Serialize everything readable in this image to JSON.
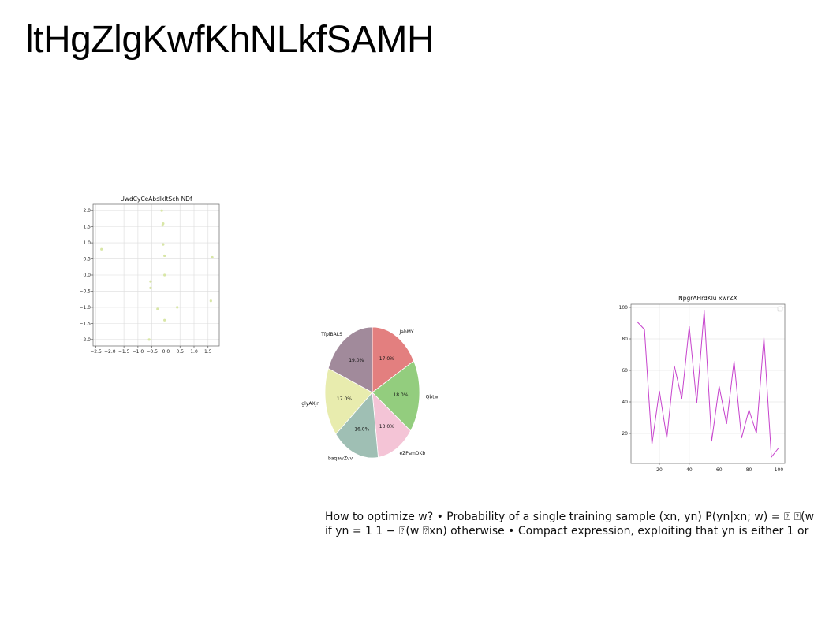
{
  "page": {
    "title": "ltHgZlgKwfKhNLkfSAMH"
  },
  "text_block": {
    "line1": "How to optimize w? • Probability of a single training sample (xn, yn) P(yn|xn; w) = ⍰ ⍰(w",
    "line2": "if yn = 1 1 − ⍰(w ⍰xn) otherwise • Compact expression, exploiting that yn is either 1 or"
  },
  "chart_data": [
    {
      "type": "scatter",
      "title": "UwdCyCeAbslkltSch NDf",
      "xlim": [
        -2.6,
        1.9
      ],
      "ylim": [
        -2.2,
        2.2
      ],
      "xticks": [
        "−2.5",
        "−2.0",
        "−1.5",
        "−1.0",
        "−0.5",
        "0.0",
        "0.5",
        "1.0",
        "1.5"
      ],
      "xtick_values": [
        -2.5,
        -2.0,
        -1.5,
        -1.0,
        -0.5,
        0.0,
        0.5,
        1.0,
        1.5
      ],
      "yticks": [
        "2.0",
        "1.5",
        "1.0",
        "0.5",
        "0.0",
        "−0.5",
        "−1.0",
        "−1.5",
        "−2.0"
      ],
      "ytick_values": [
        2.0,
        1.5,
        1.0,
        0.5,
        0.0,
        -0.5,
        -1.0,
        -1.5,
        -2.0
      ],
      "grid": true,
      "color": "#d8e6a6",
      "x": [
        -2.3,
        -0.15,
        -0.12,
        -0.1,
        -0.1,
        -0.05,
        -0.05,
        -0.55,
        -0.55,
        -0.3,
        0.4,
        -0.05,
        1.65,
        1.6,
        -0.6
      ],
      "y": [
        0.8,
        2.0,
        1.55,
        1.6,
        0.95,
        0.6,
        0.0,
        -0.2,
        -0.4,
        -1.05,
        -1.0,
        -1.4,
        0.55,
        -0.8,
        -2.0
      ]
    },
    {
      "type": "pie",
      "labels": [
        "JahMY",
        "Qbtw",
        "eZPsmDKb",
        "baqawZvv",
        "glyAXjn",
        "TfplBALS"
      ],
      "values": [
        17.0,
        18.0,
        13.0,
        16.0,
        17.0,
        19.0
      ],
      "pct_labels": [
        "17.0%",
        "18.0%",
        "13.0%",
        "16.0%",
        "17.0%",
        "19.0%"
      ],
      "colors": [
        "#e37f7f",
        "#93cd7e",
        "#f4c4d6",
        "#9fbfb4",
        "#e8ecae",
        "#a18a9b"
      ]
    },
    {
      "type": "line",
      "title": "NpgrAHrdKlu xwrZX",
      "xlim": [
        1,
        104
      ],
      "ylim": [
        1,
        102
      ],
      "xticks": [
        "20",
        "40",
        "60",
        "80",
        "100"
      ],
      "xtick_values": [
        20,
        40,
        60,
        80,
        100
      ],
      "yticks": [
        "100",
        "80",
        "60",
        "40",
        "20"
      ],
      "ytick_values": [
        100,
        80,
        60,
        40,
        20
      ],
      "grid": true,
      "legend": "top-right",
      "color": "#c642cc",
      "x": [
        5,
        10,
        15,
        20,
        25,
        30,
        35,
        40,
        45,
        50,
        55,
        60,
        65,
        70,
        75,
        80,
        85,
        90,
        95,
        100
      ],
      "y": [
        91,
        86,
        13,
        47,
        17,
        63,
        42,
        88,
        39,
        98,
        15,
        50,
        26,
        66,
        17,
        35,
        20,
        81,
        5,
        11
      ]
    }
  ]
}
